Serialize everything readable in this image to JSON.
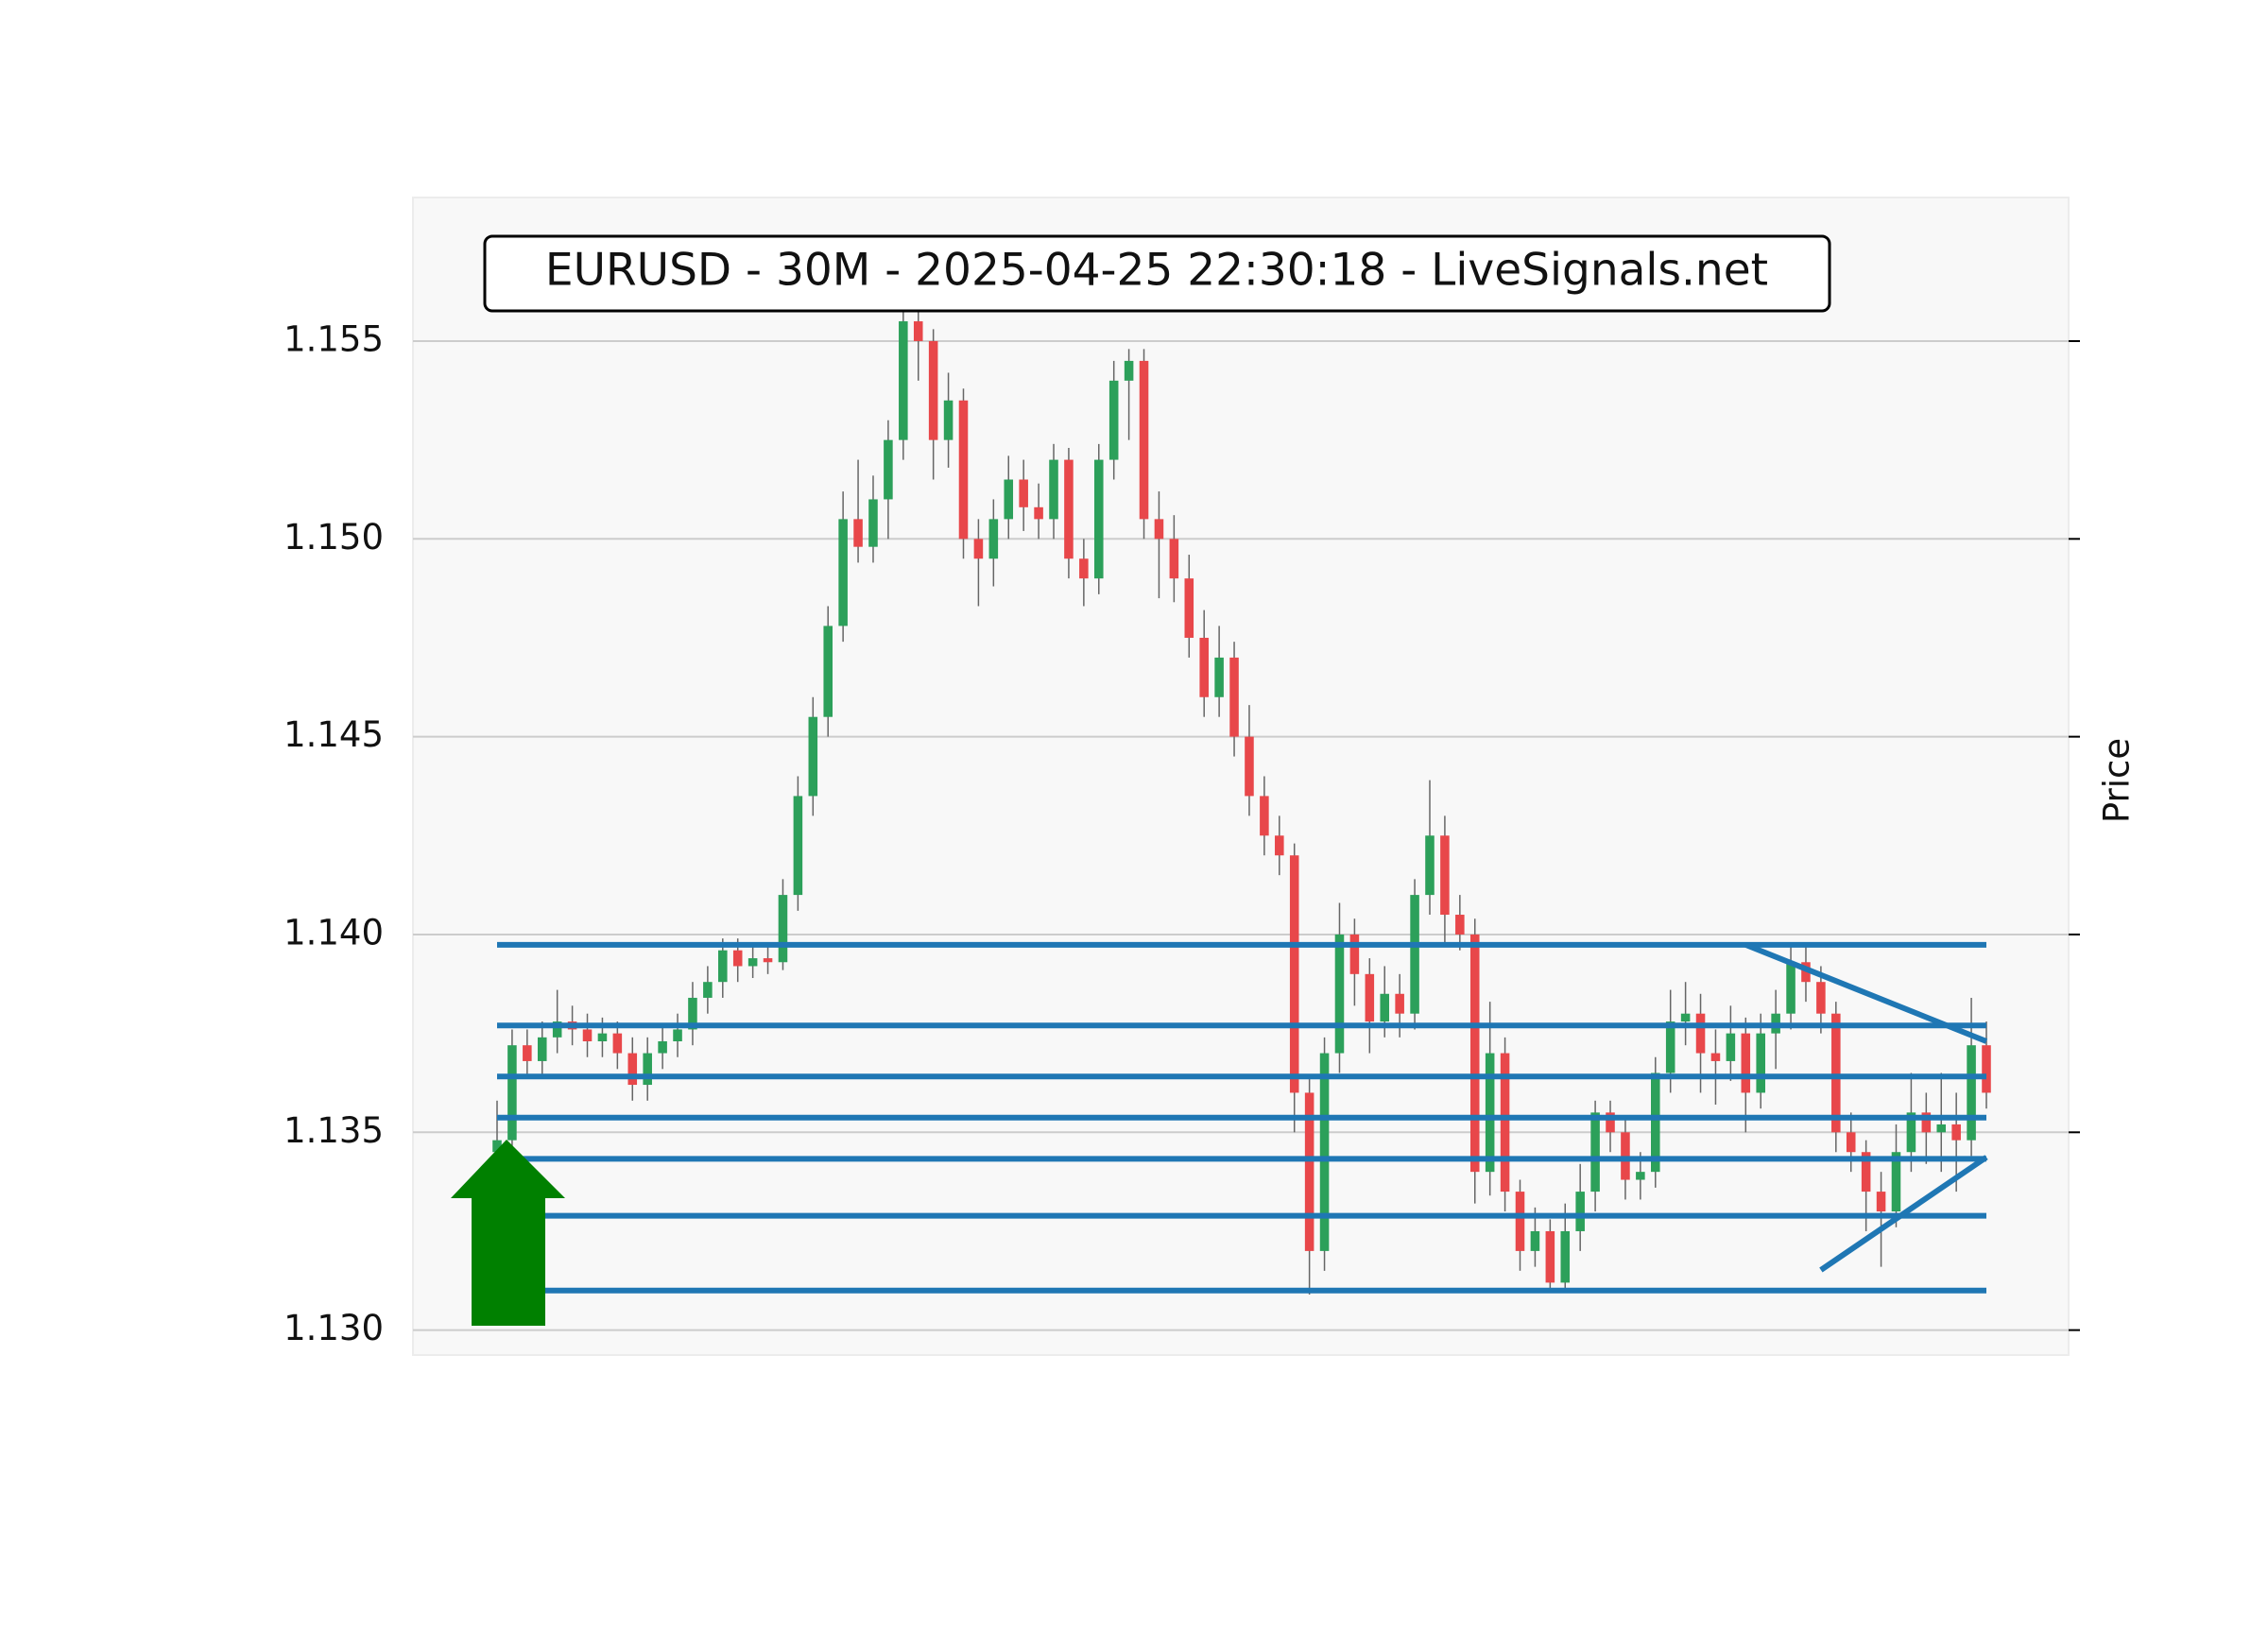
{
  "chart_data": {
    "type": "candlestick",
    "title": "EURUSD - 30M - 2025-04-25 22:30:18 - LiveSignals.net",
    "y_label": "Price",
    "ylim": [
      1.12937,
      1.15863
    ],
    "yticks": [
      {
        "value": 1.13,
        "label": "1.130"
      },
      {
        "value": 1.135,
        "label": "1.135"
      },
      {
        "value": 1.14,
        "label": "1.140"
      },
      {
        "value": 1.145,
        "label": "1.145"
      },
      {
        "value": 1.15,
        "label": "1.150"
      },
      {
        "value": 1.155,
        "label": "1.155"
      }
    ],
    "grid": true,
    "up_color": "#2ca05a",
    "down_color": "#e8474a",
    "wick_color": "#666666",
    "open": [
      1.1345,
      1.1348,
      1.1372,
      1.1368,
      1.1374,
      1.1378,
      1.1376,
      1.1373,
      1.1375,
      1.137,
      1.1362,
      1.137,
      1.1373,
      1.1376,
      1.1384,
      1.1388,
      1.1396,
      1.1392,
      1.1394,
      1.1393,
      1.141,
      1.1435,
      1.1455,
      1.1478,
      1.1505,
      1.1498,
      1.151,
      1.1525,
      1.1555,
      1.155,
      1.1525,
      1.1535,
      1.15,
      1.1495,
      1.1505,
      1.1515,
      1.1508,
      1.1505,
      1.152,
      1.1495,
      1.149,
      1.152,
      1.154,
      1.1545,
      1.1505,
      1.15,
      1.149,
      1.1475,
      1.146,
      1.147,
      1.145,
      1.1435,
      1.1425,
      1.142,
      1.136,
      1.132,
      1.137,
      1.14,
      1.139,
      1.1378,
      1.1385,
      1.138,
      1.141,
      1.1425,
      1.1405,
      1.14,
      1.134,
      1.137,
      1.1335,
      1.132,
      1.1325,
      1.1312,
      1.1325,
      1.1335,
      1.1355,
      1.135,
      1.1338,
      1.134,
      1.1365,
      1.1378,
      1.138,
      1.137,
      1.1368,
      1.1375,
      1.136,
      1.1375,
      1.138,
      1.1393,
      1.1388,
      1.138,
      1.135,
      1.1345,
      1.1335,
      1.133,
      1.1345,
      1.1355,
      1.135,
      1.1352,
      1.1348,
      1.1372
    ],
    "high": [
      1.1358,
      1.1376,
      1.1376,
      1.1378,
      1.1386,
      1.1382,
      1.138,
      1.1379,
      1.1378,
      1.1374,
      1.1374,
      1.1377,
      1.138,
      1.1388,
      1.1392,
      1.1399,
      1.1399,
      1.1398,
      1.1398,
      1.1414,
      1.144,
      1.146,
      1.1483,
      1.1512,
      1.152,
      1.1516,
      1.153,
      1.1562,
      1.1563,
      1.1553,
      1.1542,
      1.1538,
      1.1505,
      1.151,
      1.1521,
      1.152,
      1.1514,
      1.1524,
      1.1523,
      1.15,
      1.1524,
      1.1545,
      1.1548,
      1.1548,
      1.1512,
      1.1506,
      1.1496,
      1.1482,
      1.1478,
      1.1474,
      1.1458,
      1.144,
      1.143,
      1.1423,
      1.1364,
      1.1374,
      1.1408,
      1.1404,
      1.1394,
      1.1392,
      1.139,
      1.1414,
      1.1439,
      1.143,
      1.141,
      1.1404,
      1.1383,
      1.1374,
      1.1338,
      1.1331,
      1.1328,
      1.1332,
      1.1342,
      1.1358,
      1.1358,
      1.1354,
      1.1345,
      1.1369,
      1.1386,
      1.1388,
      1.1385,
      1.1376,
      1.1382,
      1.1379,
      1.138,
      1.1386,
      1.1398,
      1.1397,
      1.1392,
      1.1383,
      1.1355,
      1.1348,
      1.134,
      1.1352,
      1.1365,
      1.136,
      1.1365,
      1.136,
      1.1384,
      1.1378
    ],
    "low": [
      1.134,
      1.1345,
      1.1364,
      1.1364,
      1.137,
      1.1372,
      1.1369,
      1.1369,
      1.1366,
      1.1358,
      1.1358,
      1.1366,
      1.1369,
      1.1372,
      1.138,
      1.1384,
      1.1388,
      1.1389,
      1.139,
      1.1391,
      1.1406,
      1.143,
      1.145,
      1.1474,
      1.1494,
      1.1494,
      1.15,
      1.152,
      1.154,
      1.1515,
      1.1518,
      1.1495,
      1.1483,
      1.1488,
      1.15,
      1.1502,
      1.15,
      1.15,
      1.149,
      1.1483,
      1.1486,
      1.1515,
      1.1525,
      1.15,
      1.1485,
      1.1484,
      1.147,
      1.1455,
      1.1455,
      1.1445,
      1.143,
      1.142,
      1.1415,
      1.135,
      1.1309,
      1.1315,
      1.1365,
      1.1382,
      1.137,
      1.1374,
      1.1374,
      1.1376,
      1.1405,
      1.1398,
      1.1396,
      1.1332,
      1.1334,
      1.133,
      1.1315,
      1.1316,
      1.131,
      1.131,
      1.132,
      1.133,
      1.1345,
      1.1333,
      1.1333,
      1.1336,
      1.136,
      1.1372,
      1.136,
      1.1357,
      1.1363,
      1.135,
      1.1356,
      1.1366,
      1.1376,
      1.1383,
      1.1375,
      1.1345,
      1.134,
      1.1325,
      1.1316,
      1.1326,
      1.134,
      1.1342,
      1.134,
      1.1335,
      1.1344,
      1.1356
    ],
    "close": [
      1.1348,
      1.1372,
      1.1368,
      1.1374,
      1.1378,
      1.1376,
      1.1373,
      1.1375,
      1.137,
      1.1362,
      1.137,
      1.1373,
      1.1376,
      1.1384,
      1.1388,
      1.1396,
      1.1392,
      1.1394,
      1.1393,
      1.141,
      1.1435,
      1.1455,
      1.1478,
      1.1505,
      1.1498,
      1.151,
      1.1525,
      1.1555,
      1.155,
      1.1525,
      1.1535,
      1.15,
      1.1495,
      1.1505,
      1.1515,
      1.1508,
      1.1505,
      1.152,
      1.1495,
      1.149,
      1.152,
      1.154,
      1.1545,
      1.1505,
      1.15,
      1.149,
      1.1475,
      1.146,
      1.147,
      1.145,
      1.1435,
      1.1425,
      1.142,
      1.136,
      1.132,
      1.137,
      1.14,
      1.139,
      1.1378,
      1.1385,
      1.138,
      1.141,
      1.1425,
      1.1405,
      1.14,
      1.134,
      1.137,
      1.1335,
      1.132,
      1.1325,
      1.1312,
      1.1325,
      1.1335,
      1.1355,
      1.135,
      1.1338,
      1.134,
      1.1365,
      1.1378,
      1.138,
      1.137,
      1.1368,
      1.1375,
      1.136,
      1.1375,
      1.138,
      1.1393,
      1.1388,
      1.138,
      1.135,
      1.1345,
      1.1335,
      1.133,
      1.1345,
      1.1355,
      1.135,
      1.1352,
      1.1348,
      1.1372,
      1.136
    ],
    "level_color": "#1f77b4",
    "levels": [
      1.13974,
      1.1377,
      1.13641,
      1.13537,
      1.13433,
      1.13289,
      1.131
    ],
    "trendlines": [
      {
        "x": [
          83,
          99
        ],
        "values": [
          1.13974,
          1.1373
        ]
      },
      {
        "x": [
          88,
          99
        ],
        "values": [
          1.13152,
          1.13437
        ]
      }
    ],
    "signal_color": "#008000"
  }
}
